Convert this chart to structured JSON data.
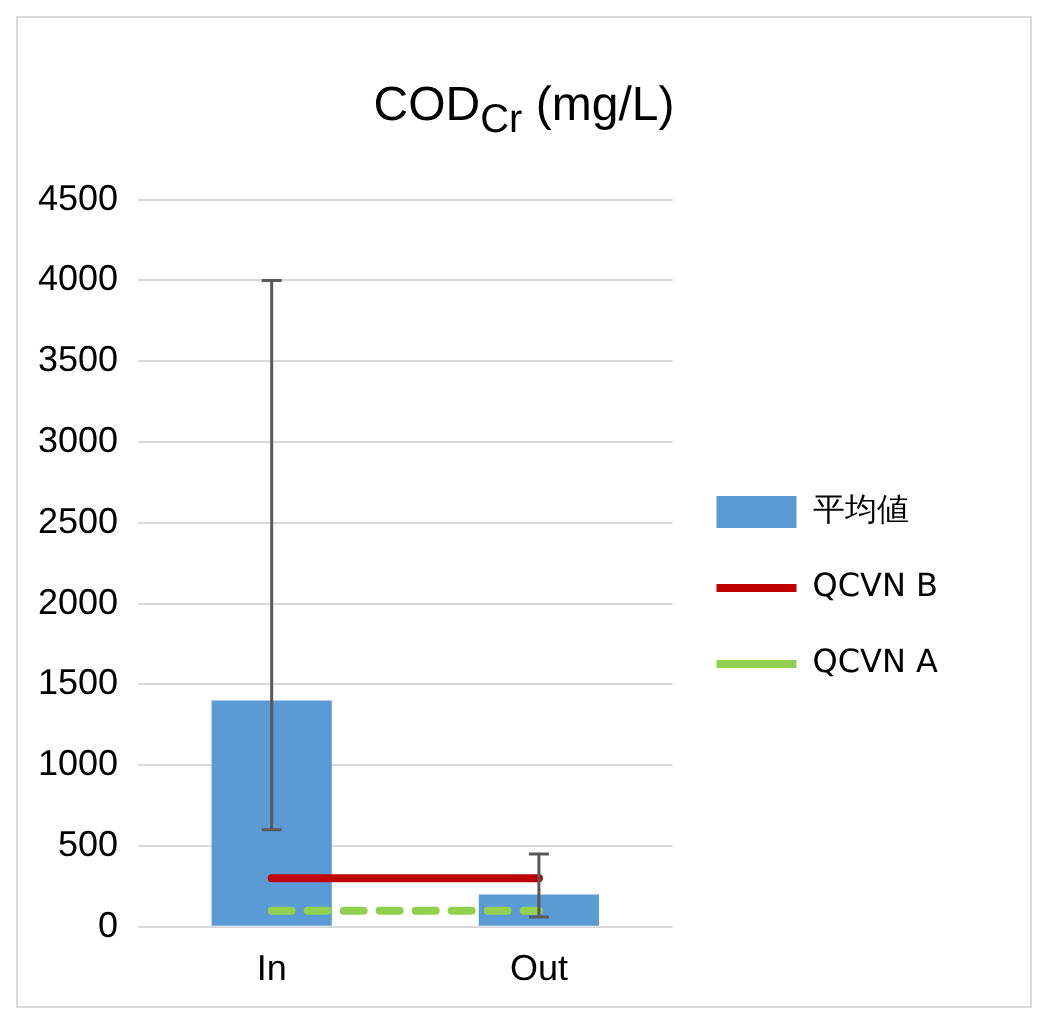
{
  "chart_data": {
    "type": "bar",
    "title": "COD$_{Cr}$ (mg/L)",
    "categories": [
      "In",
      "Out"
    ],
    "series": [
      {
        "name": "平均値",
        "type": "bar",
        "color": "#5b9bd5",
        "values": [
          1400,
          200
        ],
        "errors": [
          [
            600,
            4000
          ],
          [
            60,
            450
          ]
        ]
      },
      {
        "name": "QCVN B",
        "type": "line",
        "color": "#c00000",
        "values": [
          300,
          300
        ],
        "line_style": "solid",
        "marker": "none"
      },
      {
        "name": "QCVN A",
        "type": "line",
        "color": "#92d050",
        "values": [
          100,
          100
        ],
        "line_style": "dashed",
        "marker": "none"
      }
    ],
    "ylim": [
      0,
      4500
    ],
    "yticks": [
      0,
      500,
      1000,
      1500,
      2000,
      2500,
      3000,
      3500,
      4000,
      4500
    ],
    "grid": "y",
    "legend": "right"
  }
}
